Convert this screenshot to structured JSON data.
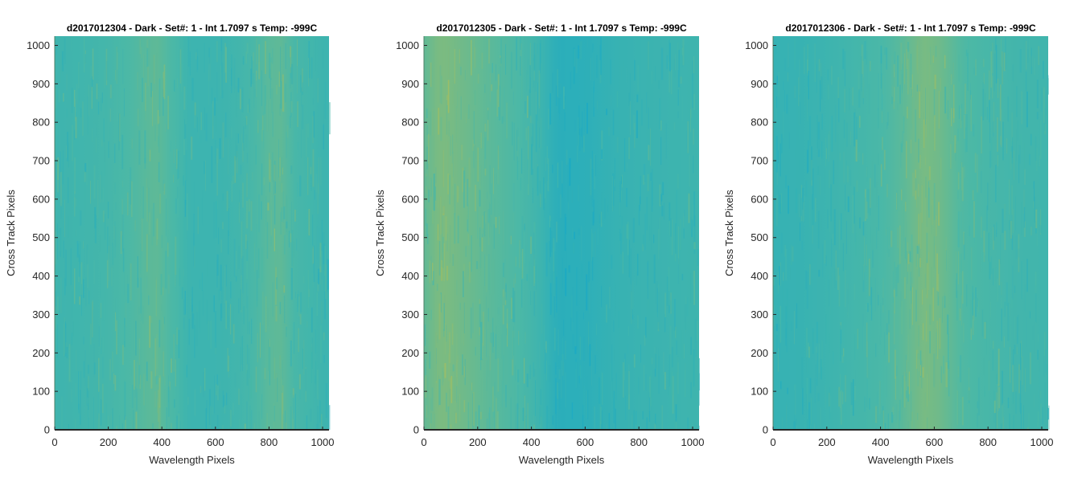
{
  "chart_data": [
    {
      "type": "heatmap",
      "title": "d2017012304 - Dark - Set#: 1 - Int 1.7097 s Temp: -999C",
      "xlabel": "Wavelength Pixels",
      "ylabel": "Cross Track Pixels",
      "xlim": [
        0,
        1024
      ],
      "ylim": [
        0,
        1024
      ],
      "xticks": [
        0,
        200,
        400,
        600,
        800,
        1000
      ],
      "yticks": [
        0,
        100,
        200,
        300,
        400,
        500,
        600,
        700,
        800,
        900,
        1000
      ],
      "xtick_labels": [
        "0",
        "200",
        "400",
        "600",
        "800",
        "1000"
      ],
      "ytick_labels": [
        "0",
        "100",
        "200",
        "300",
        "400",
        "500",
        "600",
        "700",
        "800",
        "900",
        "1000"
      ],
      "column_profile": {
        "x": [
          0,
          100,
          200,
          300,
          380,
          450,
          500,
          600,
          700,
          800,
          850,
          900,
          1024
        ],
        "level": [
          0.38,
          0.4,
          0.44,
          0.52,
          0.58,
          0.48,
          0.36,
          0.36,
          0.42,
          0.56,
          0.58,
          0.46,
          0.36
        ]
      },
      "colors": {
        "low": "#15a8c8",
        "mid": "#4cb8a6",
        "high": "#c8c044"
      }
    },
    {
      "type": "heatmap",
      "title": "d2017012305 - Dark - Set#: 1 - Int 1.7097 s Temp: -999C",
      "xlabel": "Wavelength Pixels",
      "ylabel": "Cross Track Pixels",
      "xlim": [
        0,
        1024
      ],
      "ylim": [
        0,
        1024
      ],
      "xticks": [
        0,
        200,
        400,
        600,
        800,
        1000
      ],
      "yticks": [
        0,
        100,
        200,
        300,
        400,
        500,
        600,
        700,
        800,
        900,
        1000
      ],
      "xtick_labels": [
        "0",
        "200",
        "400",
        "600",
        "800",
        "1000"
      ],
      "ytick_labels": [
        "0",
        "100",
        "200",
        "300",
        "400",
        "500",
        "600",
        "700",
        "800",
        "900",
        "1000"
      ],
      "column_profile": {
        "x": [
          0,
          60,
          150,
          250,
          350,
          420,
          500,
          600,
          700,
          800,
          900,
          1024
        ],
        "level": [
          0.58,
          0.7,
          0.64,
          0.56,
          0.5,
          0.4,
          0.2,
          0.22,
          0.3,
          0.34,
          0.36,
          0.38
        ]
      },
      "colors": {
        "low": "#15a8c8",
        "mid": "#4cb8a6",
        "high": "#c8c044"
      }
    },
    {
      "type": "heatmap",
      "title": "d2017012306 - Dark - Set#: 1 - Int 1.7097 s Temp: -999C",
      "xlabel": "Wavelength Pixels",
      "ylabel": "Cross Track Pixels",
      "xlim": [
        0,
        1024
      ],
      "ylim": [
        0,
        1024
      ],
      "xticks": [
        0,
        200,
        400,
        600,
        800,
        1000
      ],
      "yticks": [
        0,
        100,
        200,
        300,
        400,
        500,
        600,
        700,
        800,
        900,
        1000
      ],
      "xtick_labels": [
        "0",
        "200",
        "400",
        "600",
        "800",
        "1000"
      ],
      "ytick_labels": [
        "0",
        "100",
        "200",
        "300",
        "400",
        "500",
        "600",
        "700",
        "800",
        "900",
        "1000"
      ],
      "column_profile": {
        "x": [
          0,
          100,
          200,
          300,
          400,
          480,
          560,
          620,
          700,
          800,
          900,
          1024
        ],
        "level": [
          0.3,
          0.32,
          0.36,
          0.42,
          0.48,
          0.56,
          0.68,
          0.64,
          0.52,
          0.46,
          0.42,
          0.4
        ]
      },
      "colors": {
        "low": "#15a8c8",
        "mid": "#4cb8a6",
        "high": "#c8c044"
      }
    }
  ]
}
